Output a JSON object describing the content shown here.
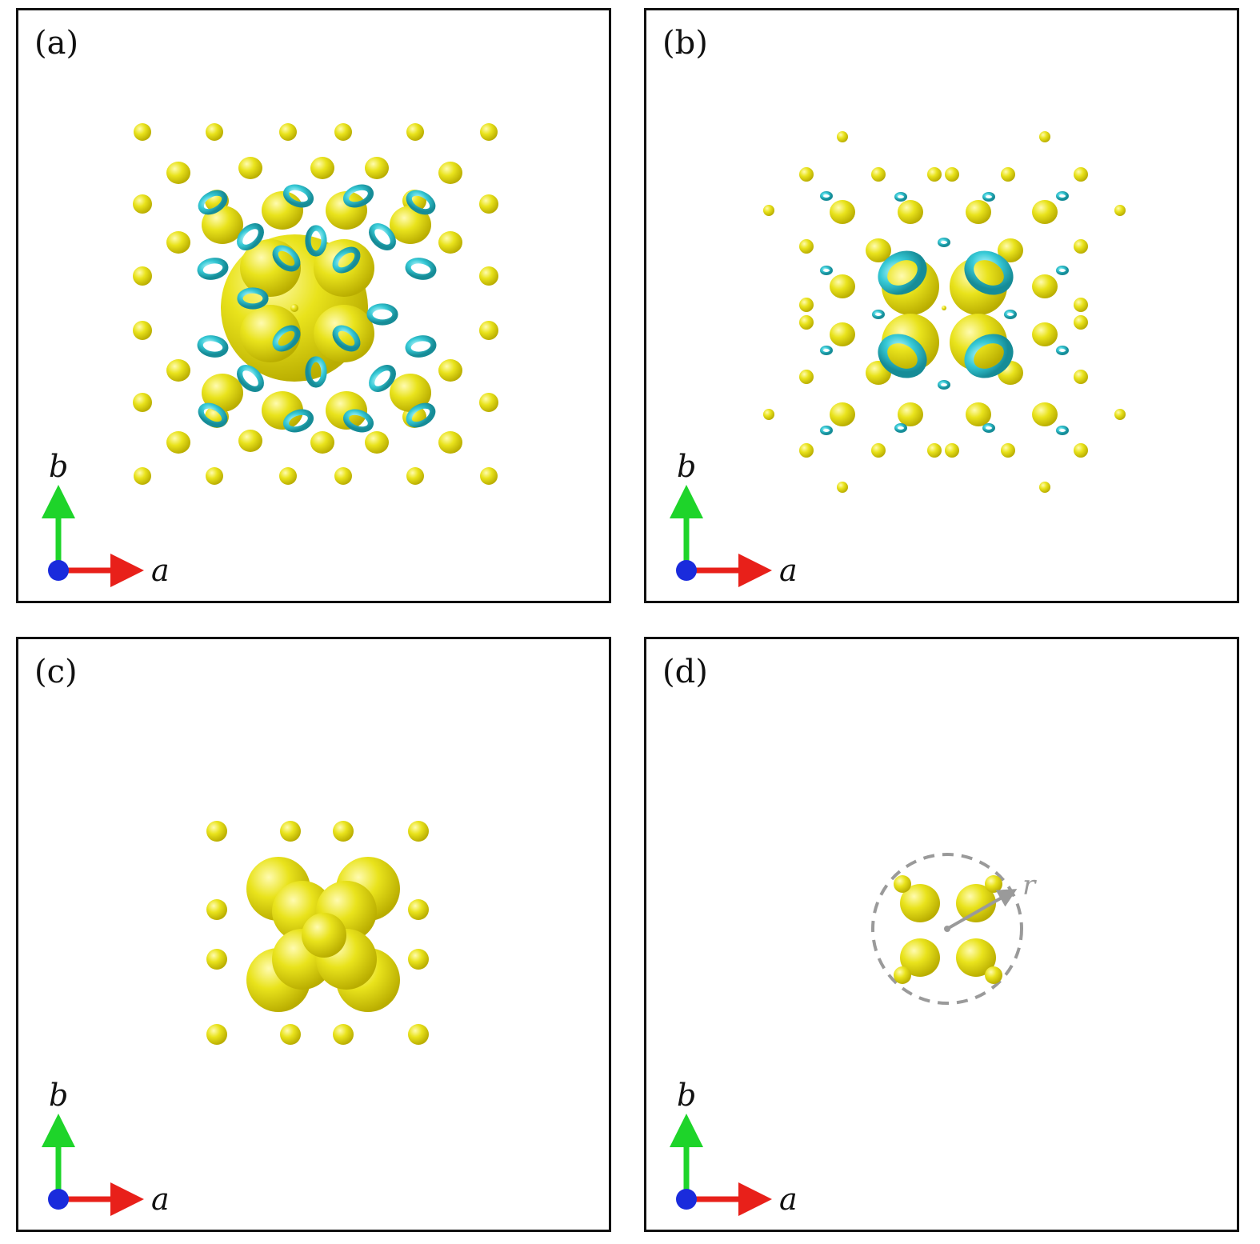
{
  "panels": [
    {
      "id": "a",
      "label": "(a)"
    },
    {
      "id": "b",
      "label": "(b)"
    },
    {
      "id": "c",
      "label": "(c)"
    },
    {
      "id": "d",
      "label": "(d)"
    }
  ],
  "axes": {
    "vertical": "b",
    "horizontal": "a"
  },
  "radius_label": "r",
  "colors": {
    "isosurface_positive": "#e9e31c",
    "isosurface_negative": "#36c9d6",
    "axis_a_arrow": "#e8201a",
    "axis_b_arrow": "#1ed42a",
    "axis_c_dot": "#1a2bdc",
    "radius_marker": "#9a9a9a",
    "frame": "#111111"
  },
  "icons": [
    "axis-triad-icon",
    "radius-arrow-icon",
    "dashed-circle-icon"
  ]
}
